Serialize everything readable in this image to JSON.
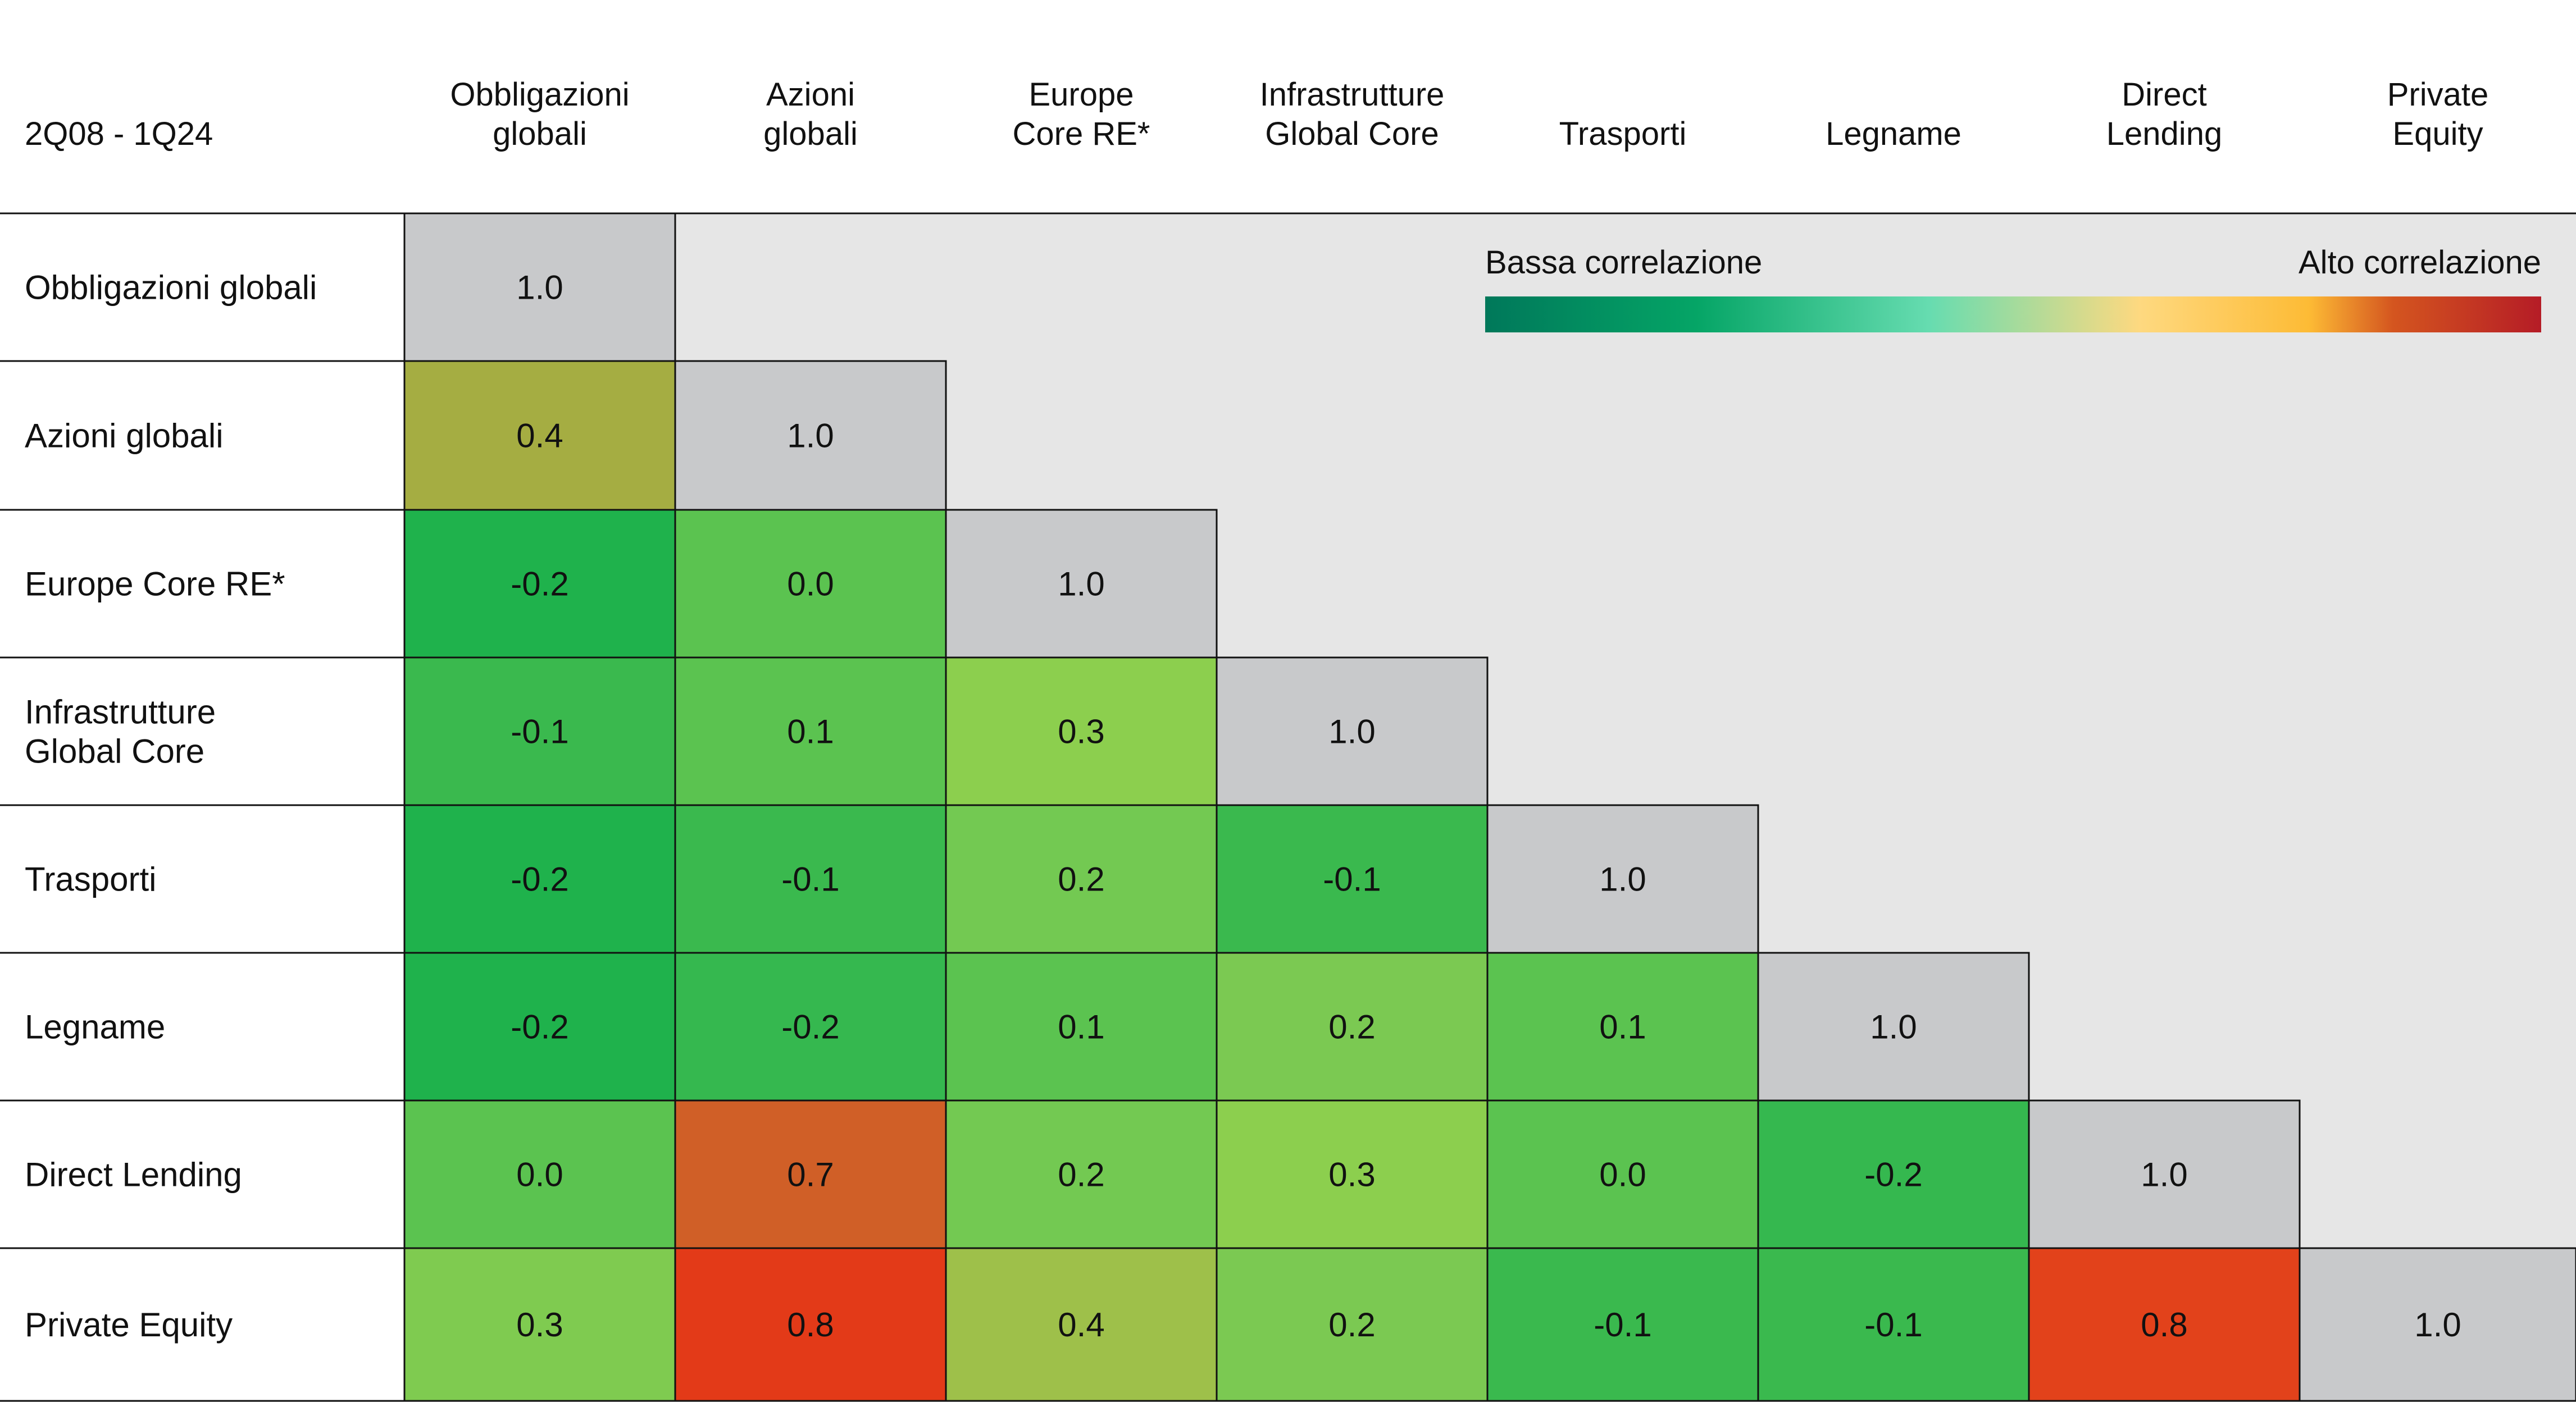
{
  "chart_data": {
    "type": "heatmap",
    "period_label": "2Q08 - 1Q24",
    "columns": [
      [
        "Obbligazioni",
        "globali"
      ],
      [
        "Azioni",
        "globali"
      ],
      [
        "Europe",
        "Core RE*"
      ],
      [
        "Infrastrutture",
        "Global Core"
      ],
      [
        "Trasporti"
      ],
      [
        "Legname"
      ],
      [
        "Direct",
        "Lending"
      ],
      [
        "Private",
        "Equity"
      ]
    ],
    "rows": [
      [
        "Obbligazioni globali"
      ],
      [
        "Azioni globali"
      ],
      [
        "Europe Core RE*"
      ],
      [
        "Infrastrutture",
        "Global Core"
      ],
      [
        "Trasporti"
      ],
      [
        "Legname"
      ],
      [
        "Direct Lending"
      ],
      [
        "Private Equity"
      ]
    ],
    "values": [
      [
        "1.0"
      ],
      [
        "0.4",
        "1.0"
      ],
      [
        "-0.2",
        "0.0",
        "1.0"
      ],
      [
        "-0.1",
        "0.1",
        "0.3",
        "1.0"
      ],
      [
        "-0.2",
        "-0.1",
        "0.2",
        "-0.1",
        "1.0"
      ],
      [
        "-0.2",
        "-0.2",
        "0.1",
        "0.2",
        "0.1",
        "1.0"
      ],
      [
        "0.0",
        "0.7",
        "0.2",
        "0.3",
        "0.0",
        "-0.2",
        "1.0"
      ],
      [
        "0.3",
        "0.8",
        "0.4",
        "0.2",
        "-0.1",
        "-0.1",
        "0.8",
        "1.0"
      ]
    ],
    "colors": [
      [
        "#c8c9cb"
      ],
      [
        "#a5ad42",
        "#c8c9cb"
      ],
      [
        "#1fb24c",
        "#5bc350",
        "#c8c9cb"
      ],
      [
        "#3ab94e",
        "#5bc350",
        "#8ccf4e",
        "#c8c9cb"
      ],
      [
        "#1fb24c",
        "#3ab94e",
        "#73c952",
        "#3ab94e",
        "#c8c9cb"
      ],
      [
        "#1fb24c",
        "#35b84f",
        "#5bc350",
        "#7bc952",
        "#5bc350",
        "#c8c9cb"
      ],
      [
        "#5bc350",
        "#d05f27",
        "#73c952",
        "#8ccf4e",
        "#5bc350",
        "#35b84f",
        "#c8c9cb"
      ],
      [
        "#7fcb50",
        "#e33a18",
        "#9ec04a",
        "#7bc952",
        "#3ab94e",
        "#3ab94e",
        "#e2421b",
        "#c8c9cb"
      ]
    ],
    "legend": {
      "low_label": "Bassa correlazione",
      "high_label": "Alto correlazione",
      "gradient": [
        "#00785a",
        "#05a566",
        "#66dcb0",
        "#fed980",
        "#fdbb35",
        "#d4551f",
        "#b51c26"
      ]
    },
    "background_fill": "#e6e6e6"
  }
}
